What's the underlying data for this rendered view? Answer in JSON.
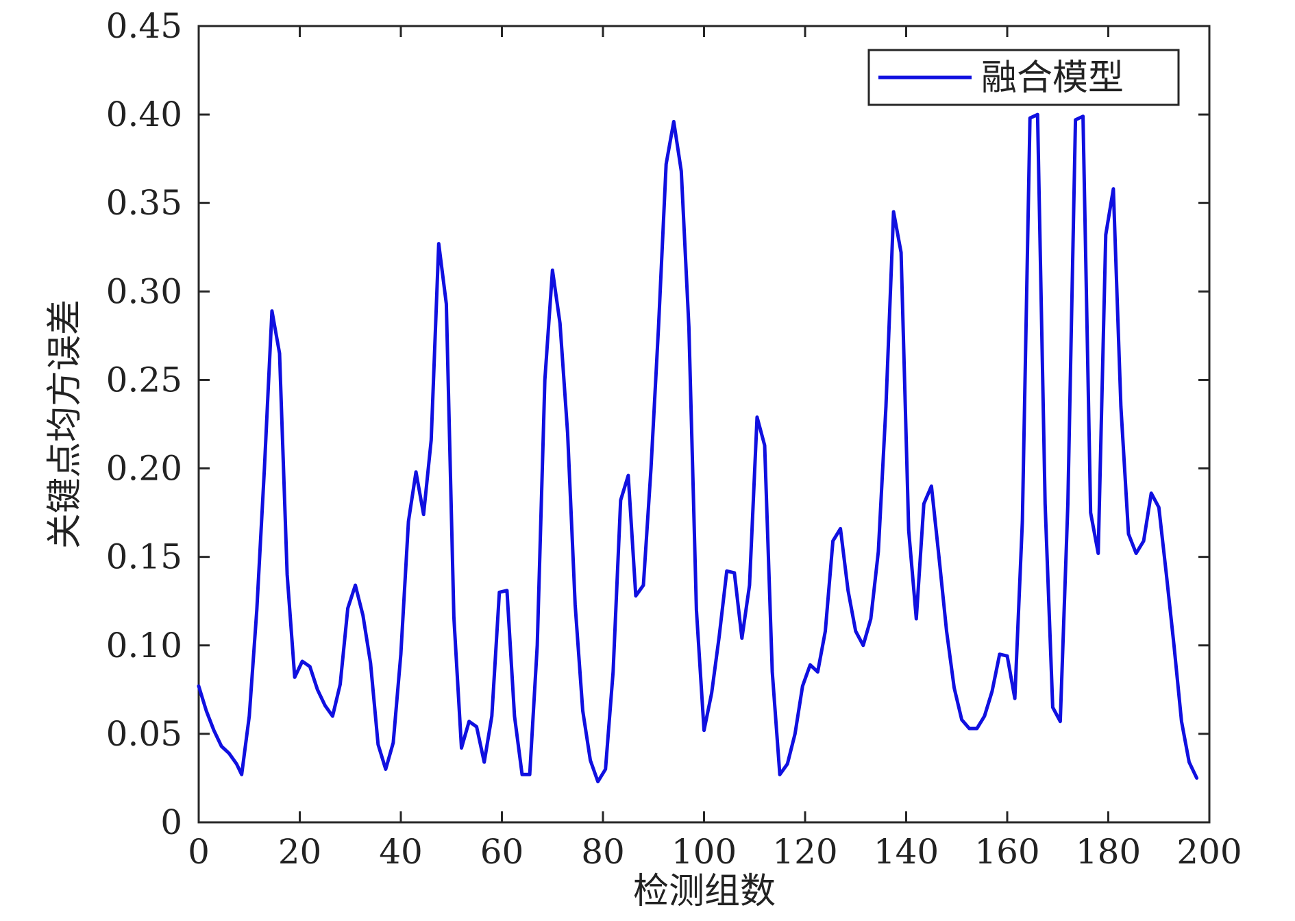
{
  "chart_data": {
    "type": "line",
    "title": "",
    "xlabel": "检测组数",
    "ylabel": "关键点均方误差",
    "xlim": [
      0,
      200
    ],
    "ylim": [
      0,
      0.45
    ],
    "xticks": [
      0,
      20,
      40,
      60,
      80,
      100,
      120,
      140,
      160,
      180,
      200
    ],
    "yticks": [
      0,
      0.05,
      0.1,
      0.15,
      0.2,
      0.25,
      0.3,
      0.35,
      0.4,
      0.45
    ],
    "xtick_labels": [
      "0",
      "20",
      "40",
      "60",
      "80",
      "100",
      "120",
      "140",
      "160",
      "180",
      "200"
    ],
    "ytick_labels": [
      "0",
      "0.05",
      "0.10",
      "0.15",
      "0.20",
      "0.25",
      "0.30",
      "0.35",
      "0.40",
      "0.45"
    ],
    "grid": false,
    "legend_position": "top-right",
    "series": [
      {
        "name": "融合模型",
        "color": "#1010e0",
        "x": [
          0,
          1.5,
          3,
          4.5,
          6,
          7.5,
          8.5,
          10,
          11.5,
          13,
          14.5,
          16,
          17.5,
          19,
          20.5,
          22,
          23.5,
          25,
          26.5,
          28,
          29.5,
          31,
          32.5,
          34,
          35.5,
          37,
          38.5,
          40,
          41.5,
          43,
          44.5,
          46,
          47.5,
          49,
          50.5,
          52,
          53.5,
          55,
          56.5,
          58,
          59.5,
          61,
          62.5,
          64,
          65.5,
          67,
          68.5,
          70,
          71.5,
          73,
          74.5,
          76,
          77.5,
          79,
          80.5,
          82,
          83.5,
          85,
          86.5,
          88,
          89.5,
          91,
          92.5,
          94,
          95.5,
          97,
          98.5,
          100,
          101.5,
          103,
          104.5,
          106,
          107.5,
          109,
          110.5,
          112,
          113.5,
          115,
          116.5,
          118,
          119.5,
          121,
          122.5,
          124,
          125.5,
          127,
          128.5,
          130,
          131.5,
          133,
          134.5,
          136,
          137.5,
          139,
          140.5,
          142,
          143.5,
          145,
          146.5,
          148,
          149.5,
          151,
          152.5,
          154,
          155.5,
          157,
          158.5,
          160,
          161.5,
          163,
          164.5,
          166,
          167.5,
          169,
          170.5,
          172,
          173.5,
          175,
          176.5,
          178,
          179.5,
          181,
          182.5,
          184,
          185.5,
          187,
          188.5,
          190,
          191.5,
          193,
          194.5,
          196,
          197.5
        ],
        "values": [
          0.077,
          0.063,
          0.052,
          0.043,
          0.039,
          0.033,
          0.027,
          0.06,
          0.12,
          0.2,
          0.289,
          0.265,
          0.14,
          0.082,
          0.091,
          0.088,
          0.075,
          0.066,
          0.06,
          0.078,
          0.121,
          0.134,
          0.117,
          0.09,
          0.044,
          0.03,
          0.045,
          0.095,
          0.17,
          0.198,
          0.174,
          0.216,
          0.327,
          0.293,
          0.116,
          0.042,
          0.057,
          0.054,
          0.034,
          0.06,
          0.13,
          0.131,
          0.06,
          0.027,
          0.027,
          0.1,
          0.25,
          0.312,
          0.282,
          0.22,
          0.123,
          0.063,
          0.035,
          0.023,
          0.03,
          0.085,
          0.182,
          0.196,
          0.128,
          0.134,
          0.2,
          0.28,
          0.372,
          0.396,
          0.368,
          0.28,
          0.12,
          0.052,
          0.073,
          0.105,
          0.142,
          0.141,
          0.104,
          0.134,
          0.229,
          0.213,
          0.085,
          0.027,
          0.033,
          0.05,
          0.077,
          0.089,
          0.085,
          0.108,
          0.159,
          0.166,
          0.131,
          0.108,
          0.1,
          0.115,
          0.153,
          0.235,
          0.345,
          0.322,
          0.165,
          0.115,
          0.18,
          0.19,
          0.15,
          0.108,
          0.076,
          0.058,
          0.053,
          0.053,
          0.06,
          0.074,
          0.095,
          0.094,
          0.07,
          0.17,
          0.398,
          0.4,
          0.18,
          0.065,
          0.057,
          0.18,
          0.397,
          0.399,
          0.175,
          0.152,
          0.332,
          0.358,
          0.235,
          0.163,
          0.152,
          0.159,
          0.186,
          0.178,
          0.14,
          0.1,
          0.057,
          0.034,
          0.025
        ]
      }
    ]
  }
}
